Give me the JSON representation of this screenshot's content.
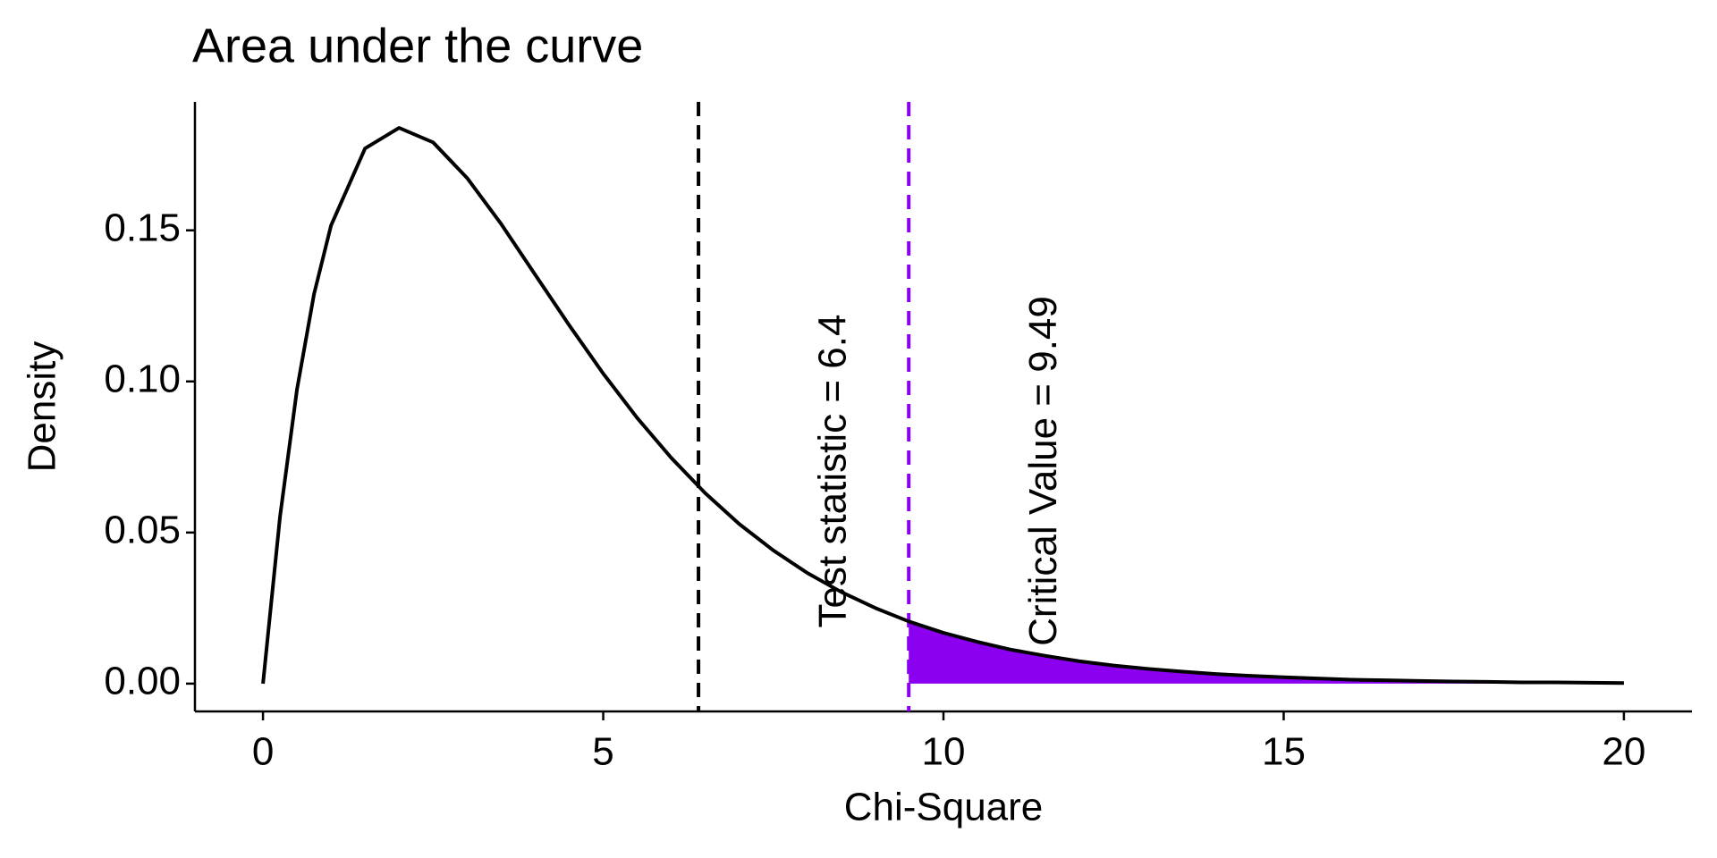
{
  "chart_data": {
    "type": "line",
    "title": "Area under the curve",
    "x_label": "Chi-Square",
    "y_label": "Density",
    "x": [
      0,
      0.25,
      0.5,
      0.75,
      1,
      1.5,
      2,
      2.5,
      3,
      3.5,
      4,
      4.5,
      5,
      5.5,
      6,
      6.5,
      7,
      7.5,
      8,
      8.5,
      9,
      9.5,
      10,
      10.5,
      11,
      11.5,
      12,
      12.5,
      13,
      13.5,
      14,
      14.5,
      15,
      15.5,
      16,
      16.5,
      17,
      17.5,
      18,
      18.5,
      19,
      19.5,
      20
    ],
    "series": [
      {
        "color": "#000000",
        "values": [
          0,
          0.0552,
          0.0974,
          0.1289,
          0.1516,
          0.1771,
          0.1839,
          0.1791,
          0.1673,
          0.1521,
          0.1353,
          0.1186,
          0.1026,
          0.0879,
          0.0747,
          0.063,
          0.0528,
          0.0441,
          0.0366,
          0.0303,
          0.025,
          0.0205,
          0.0168,
          0.0138,
          0.0112,
          0.0092,
          0.0074,
          0.006,
          0.0049,
          0.004,
          0.0032,
          0.0026,
          0.0021,
          0.0017,
          0.0013,
          0.0011,
          0.0009,
          0.0007,
          0.0006,
          0.0004,
          0.0004,
          0.0003,
          0.0002
        ]
      }
    ],
    "shaded_area": {
      "color": "#8b00f0",
      "x": [
        9.49,
        10,
        10.5,
        11,
        11.5,
        12,
        12.5,
        13,
        13.5,
        14,
        14.5,
        15,
        15.5,
        16,
        16.5,
        17,
        17.5,
        18,
        18.5,
        19,
        19.5,
        20
      ],
      "values": [
        0.0206,
        0.0168,
        0.0138,
        0.0112,
        0.0092,
        0.0074,
        0.006,
        0.0049,
        0.004,
        0.0032,
        0.0026,
        0.0021,
        0.0017,
        0.0013,
        0.0011,
        0.0009,
        0.0007,
        0.0006,
        0.0004,
        0.0004,
        0.0003,
        0.0002
      ]
    },
    "vlines": [
      {
        "x": 6.4,
        "label": "Test statistic = 6.4",
        "color": "#000000"
      },
      {
        "x": 9.49,
        "label": "Critical Value = 9.49",
        "color": "#8b00f0"
      }
    ],
    "xlim": [
      -1,
      21
    ],
    "ylim": [
      -0.0092,
      0.1925
    ],
    "xticks": [
      0,
      5,
      10,
      15,
      20
    ],
    "yticks": [
      {
        "value": 0,
        "label": "0.00"
      },
      0.05,
      {
        "value": 0.1,
        "label": "0.10"
      },
      0.15
    ],
    "grid": false
  }
}
